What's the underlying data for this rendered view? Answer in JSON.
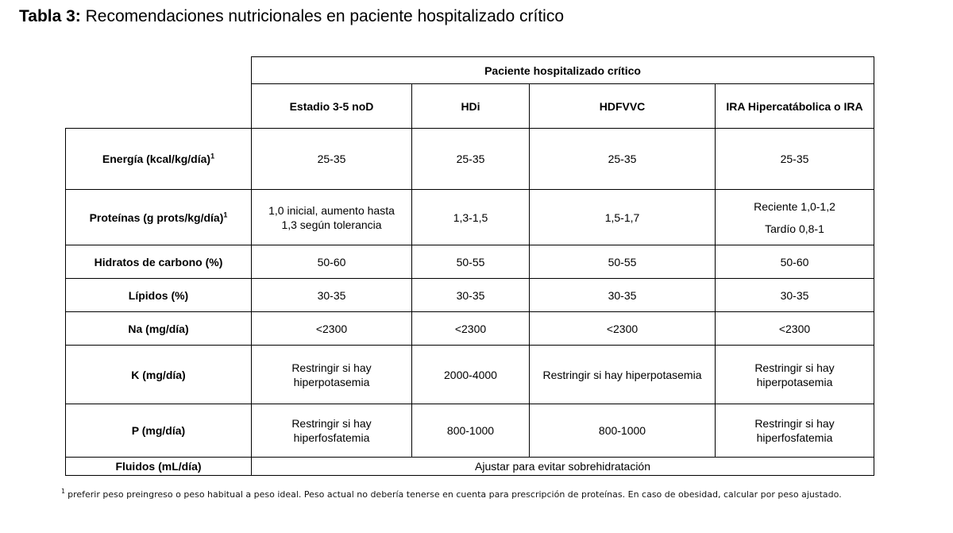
{
  "title": {
    "prefix": "Tabla 3:",
    "text": "Recomendaciones nutricionales en paciente hospitalizado crítico"
  },
  "table": {
    "group_header": "Paciente hospitalizado crítico",
    "columns": [
      "Estadio 3-5 noD",
      "HDi",
      "HDFVVC",
      "IRA Hipercatábolica o IRA"
    ],
    "rows": {
      "energia": {
        "label": "Energía (kcal/kg/día)",
        "sup": "1",
        "values": [
          "25-35",
          "25-35",
          "25-35",
          "25-35"
        ]
      },
      "proteinas": {
        "label": "Proteínas (g prots/kg/día)",
        "sup": "1",
        "col1_line1": "1,0 inicial, aumento hasta",
        "col1_line2": "1,3 según tolerancia",
        "col2": "1,3-1,5",
        "col3": "1,5-1,7",
        "col4_line1": "Reciente 1,0-1,2",
        "col4_line2": "Tardío 0,8-1"
      },
      "hidratos": {
        "label": "Hidratos de carbono (%)",
        "values": [
          "50-60",
          "50-55",
          "50-55",
          "50-60"
        ]
      },
      "lipidos": {
        "label": "Lípidos (%)",
        "values": [
          "30-35",
          "30-35",
          "30-35",
          "30-35"
        ]
      },
      "na": {
        "label": "Na (mg/día)",
        "values": [
          "<2300",
          "<2300",
          "<2300",
          "<2300"
        ]
      },
      "k": {
        "label": "K (mg/día)",
        "col1_line1": "Restringir si hay",
        "col1_line2": "hiperpotasemia",
        "col2": "2000-4000",
        "col3": "Restringir si hay hiperpotasemia",
        "col4_line1": "Restringir si hay",
        "col4_line2": "hiperpotasemia"
      },
      "p": {
        "label": "P (mg/día)",
        "col1_line1": "Restringir si hay",
        "col1_line2": "hiperfosfatemia",
        "col2": "800-1000",
        "col3": "800-1000",
        "col4_line1": "Restringir si hay",
        "col4_line2": "hiperfosfatemia"
      },
      "fluidos": {
        "label": "Fluidos (mL/día)",
        "value": "Ajustar para evitar sobrehidratación"
      }
    }
  },
  "footnote": {
    "sup": "1",
    "text": "preferir peso preingreso o peso habitual a peso ideal. Peso actual no debería tenerse en cuenta para prescripción de proteínas. En caso de obesidad, calcular por peso ajustado."
  }
}
